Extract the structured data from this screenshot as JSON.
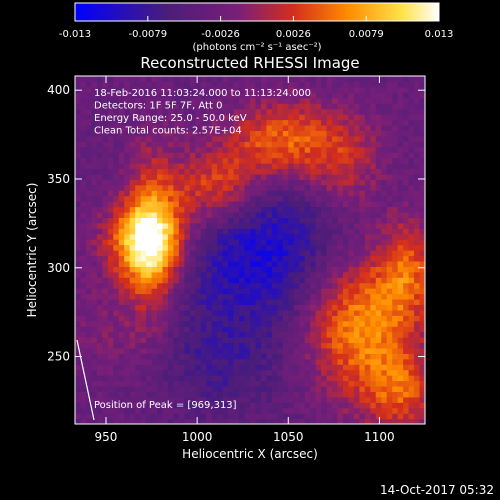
{
  "chart_data": {
    "type": "heatmap",
    "title": "Reconstructed RHESSI Image",
    "xlabel": "Heliocentric X (arcsec)",
    "ylabel": "Heliocentric Y (arcsec)",
    "xlim": [
      933,
      1125
    ],
    "ylim": [
      212,
      408
    ],
    "xticks": [
      950,
      1000,
      1050,
      1100
    ],
    "yticks": [
      250,
      300,
      350,
      400
    ],
    "colorbar": {
      "min": -0.013,
      "max": 0.013,
      "ticks": [
        "-0.013",
        "-0.0079",
        "-0.0026",
        "0.0026",
        "0.0079",
        "0.013"
      ],
      "label": "(photons cm⁻² s⁻¹ asec⁻²)",
      "colors": [
        "#0000ff",
        "#4a1d7a",
        "#7a1f78",
        "#d42e1c",
        "#ff8c00",
        "#ffe34a",
        "#ffffff"
      ]
    },
    "annotations": [
      "18-Feb-2016 11:03:24.000 to 11:13:24.000",
      "Detectors: 1F 5F 7F, Att 0",
      "Energy Range: 25.0 - 50.0 keV",
      "Clean     Total counts: 2.57E+04"
    ],
    "peak_label": "Position of Peak = [969,313]",
    "peak": [
      969,
      313
    ],
    "sources": [
      {
        "x": 972,
        "y": 315,
        "amp": 0.0125,
        "sx": 16,
        "sy": 16
      },
      {
        "x": 975,
        "y": 318,
        "amp": 0.008,
        "sx": 10,
        "sy": 36
      },
      {
        "x": 1010,
        "y": 345,
        "amp": 0.0085,
        "sx": 18,
        "sy": 16
      },
      {
        "x": 1045,
        "y": 372,
        "amp": 0.0085,
        "sx": 20,
        "sy": 16
      },
      {
        "x": 1080,
        "y": 360,
        "amp": 0.0055,
        "sx": 16,
        "sy": 20
      },
      {
        "x": 1088,
        "y": 268,
        "amp": 0.0105,
        "sx": 22,
        "sy": 28
      },
      {
        "x": 1115,
        "y": 300,
        "amp": 0.007,
        "sx": 12,
        "sy": 20
      },
      {
        "x": 1112,
        "y": 230,
        "amp": 0.0065,
        "sx": 14,
        "sy": 16
      },
      {
        "x": 950,
        "y": 262,
        "amp": 0.0025,
        "sx": 18,
        "sy": 18
      },
      {
        "x": 1035,
        "y": 310,
        "amp": -0.0075,
        "sx": 34,
        "sy": 32
      },
      {
        "x": 1012,
        "y": 245,
        "amp": -0.003,
        "sx": 30,
        "sy": 22
      }
    ]
  },
  "footer": {
    "timestamp": "14-Oct-2017 05:32"
  }
}
